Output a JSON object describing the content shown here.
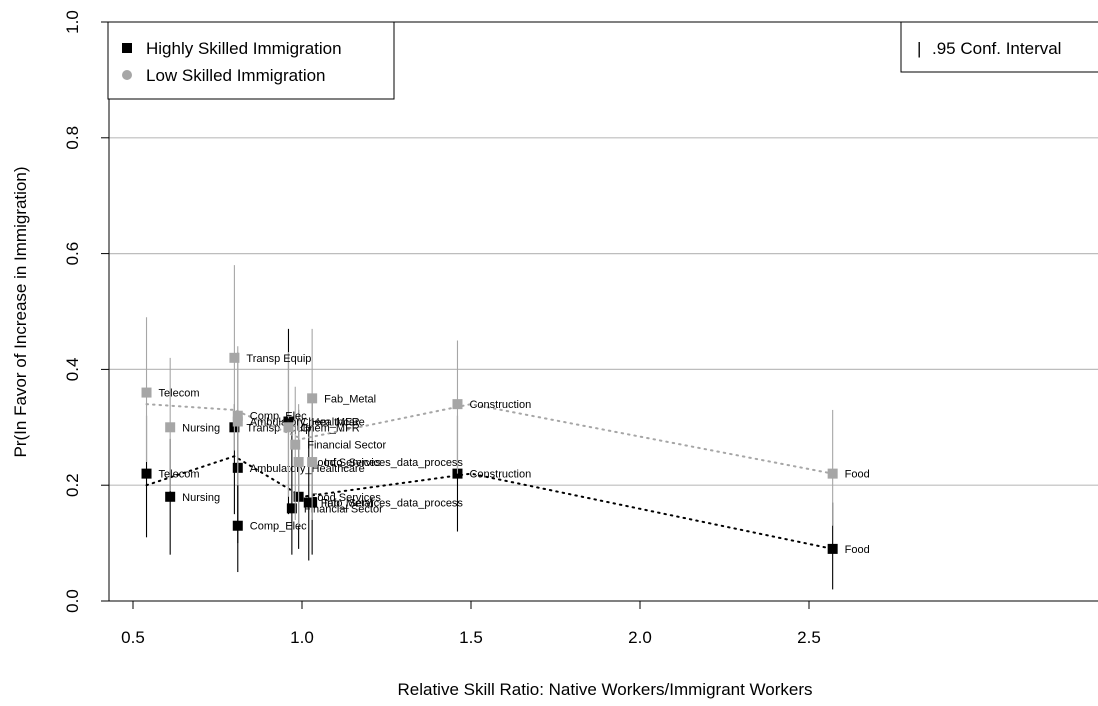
{
  "chart_data": {
    "type": "scatter",
    "xlabel": "Relative Skill Ratio: Native Workers/Immigrant Workers",
    "ylabel": "Pr(In Favor of Increase in Immigration)",
    "xlim": [
      0.5,
      2.6
    ],
    "ylim": [
      0.0,
      1.0
    ],
    "x_ticks": [
      "0.5",
      "1.0",
      "1.5",
      "2.0",
      "2.5"
    ],
    "y_ticks": [
      "0.0",
      "0.2",
      "0.4",
      "0.6",
      "0.8",
      "1.0"
    ],
    "y_grid": [
      0.2,
      0.4,
      0.6,
      0.8
    ],
    "legend": {
      "placement": "top-left",
      "entries": [
        "Highly Skilled Immigration",
        "Low Skilled Immigration"
      ]
    },
    "ci_legend": {
      "placement": "top-right",
      "symbol": "|",
      "text": ".95 Conf. Interval"
    },
    "series": [
      {
        "name": "Highly Skilled Immigration",
        "color": "#000000",
        "trend": [
          [
            0.54,
            0.2
          ],
          [
            0.8,
            0.25
          ],
          [
            1.0,
            0.18
          ],
          [
            1.5,
            0.22
          ],
          [
            2.57,
            0.09
          ]
        ],
        "points": [
          {
            "label": "Telecom",
            "x": 0.54,
            "y": 0.22,
            "lo": 0.11,
            "hi": 0.32
          },
          {
            "label": "Nursing",
            "x": 0.61,
            "y": 0.18,
            "lo": 0.08,
            "hi": 0.28
          },
          {
            "label": "Transp Equip",
            "x": 0.8,
            "y": 0.3,
            "lo": 0.15,
            "hi": 0.34
          },
          {
            "label": "Ambulatory_Healthcare",
            "x": 0.81,
            "y": 0.23,
            "lo": 0.1,
            "hi": 0.33
          },
          {
            "label": "Comp_Elec",
            "x": 0.81,
            "y": 0.13,
            "lo": 0.05,
            "hi": 0.24
          },
          {
            "label": "Chem_MFR",
            "x": 0.96,
            "y": 0.31,
            "lo": 0.15,
            "hi": 0.47
          },
          {
            "label": "Financial Sector",
            "x": 0.97,
            "y": 0.16,
            "lo": 0.08,
            "hi": 0.3
          },
          {
            "label": "Food Services",
            "x": 0.99,
            "y": 0.18,
            "lo": 0.09,
            "hi": 0.33
          },
          {
            "label": "Fab_Metal",
            "x": 1.02,
            "y": 0.17,
            "lo": 0.07,
            "hi": 0.3
          },
          {
            "label": "Info_Services_data_process",
            "x": 1.03,
            "y": 0.17,
            "lo": 0.08,
            "hi": 0.35
          },
          {
            "label": "Construction",
            "x": 1.46,
            "y": 0.22,
            "lo": 0.12,
            "hi": 0.32
          },
          {
            "label": "Food",
            "x": 2.57,
            "y": 0.09,
            "lo": 0.02,
            "hi": 0.17
          }
        ]
      },
      {
        "name": "Low Skilled Immigration",
        "color": "#a6a6a6",
        "trend": [
          [
            0.54,
            0.34
          ],
          [
            0.8,
            0.33
          ],
          [
            1.0,
            0.28
          ],
          [
            1.5,
            0.34
          ],
          [
            2.57,
            0.22
          ]
        ],
        "points": [
          {
            "label": "Telecom",
            "x": 0.54,
            "y": 0.36,
            "lo": 0.24,
            "hi": 0.49
          },
          {
            "label": "Nursing",
            "x": 0.61,
            "y": 0.3,
            "lo": 0.19,
            "hi": 0.42
          },
          {
            "label": "Transp Equip",
            "x": 0.8,
            "y": 0.42,
            "lo": 0.26,
            "hi": 0.58
          },
          {
            "label": "Comp_Elec",
            "x": 0.81,
            "y": 0.32,
            "lo": 0.2,
            "hi": 0.44
          },
          {
            "label": "Ambulatory_Healthcare",
            "x": 0.81,
            "y": 0.31,
            "lo": 0.2,
            "hi": 0.43
          },
          {
            "label": "Chem_MFR",
            "x": 0.96,
            "y": 0.3,
            "lo": 0.18,
            "hi": 0.43
          },
          {
            "label": "Financial Sector",
            "x": 0.98,
            "y": 0.27,
            "lo": 0.14,
            "hi": 0.37
          },
          {
            "label": "Food Services",
            "x": 0.99,
            "y": 0.24,
            "lo": 0.13,
            "hi": 0.34
          },
          {
            "label": "Info_Services_data_process",
            "x": 1.03,
            "y": 0.24,
            "lo": 0.14,
            "hi": 0.35
          },
          {
            "label": "Fab_Metal",
            "x": 1.03,
            "y": 0.35,
            "lo": 0.23,
            "hi": 0.47
          },
          {
            "label": "Construction",
            "x": 1.46,
            "y": 0.34,
            "lo": 0.22,
            "hi": 0.45
          },
          {
            "label": "Food",
            "x": 2.57,
            "y": 0.22,
            "lo": 0.13,
            "hi": 0.33
          }
        ]
      }
    ]
  }
}
